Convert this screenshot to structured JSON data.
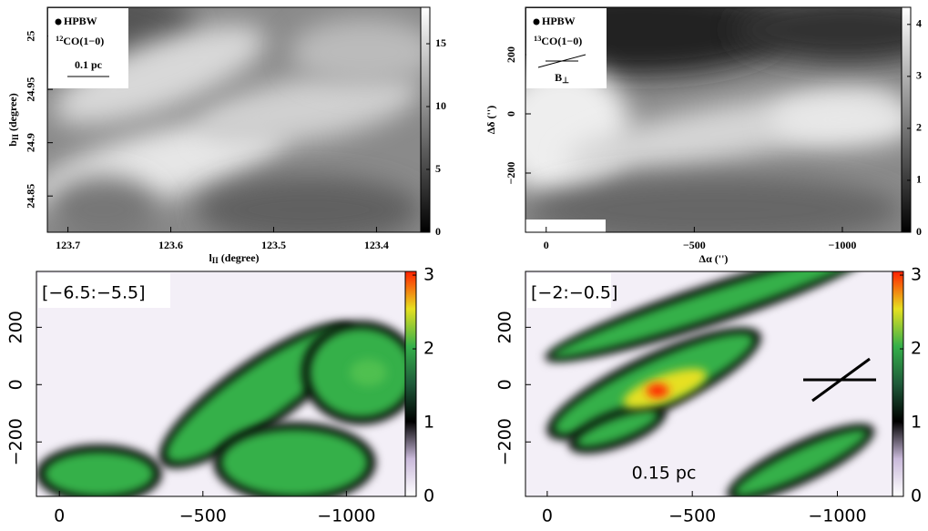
{
  "chart_data": [
    {
      "type": "image",
      "colormap": [
        "#000000",
        "#ffffff"
      ],
      "xlabel": [
        {
          "text": "l"
        },
        {
          "text": "II",
          "style": "sub"
        },
        {
          "text": " (degree)"
        }
      ],
      "ylabel": [
        {
          "text": "b"
        },
        {
          "text": "II",
          "style": "sub"
        },
        {
          "text": " (degree)"
        }
      ],
      "xlim": [
        123.72,
        123.357
      ],
      "ylim": [
        24.816,
        25.027
      ],
      "clim": [
        0,
        17.9
      ],
      "xticks": [
        123.7,
        123.6,
        123.5,
        123.4
      ],
      "yticks": [
        24.85,
        24.9,
        24.95,
        25
      ],
      "cticks": [
        0,
        5,
        10,
        15
      ],
      "legend": [
        [
          {
            "text": "HPBW"
          }
        ],
        [
          {
            "text": "12",
            "style": "sup"
          },
          {
            "text": "CO(1−0)"
          }
        ],
        [
          {
            "text": "0.1 pc"
          }
        ]
      ]
    },
    {
      "type": "image",
      "colormap": [
        "#000000",
        "#ffffff"
      ],
      "xlabel": [
        {
          "text": "Δα ('')"
        }
      ],
      "ylabel": [
        {
          "text": "Δδ ('')"
        }
      ],
      "xlim": [
        70,
        -1200
      ],
      "ylim": [
        -400,
        360
      ],
      "clim": [
        0,
        4.33
      ],
      "xticks": [
        0,
        {
          "value": -500,
          "label": "−500"
        },
        {
          "value": -1000,
          "label": "−1000"
        }
      ],
      "yticks": [
        {
          "value": -200,
          "label": "−200"
        },
        0,
        200
      ],
      "cticks": [
        0,
        1,
        2,
        3,
        4
      ],
      "legend": [
        [
          {
            "text": "HPBW"
          }
        ],
        [
          {
            "text": "13",
            "style": "sup"
          },
          {
            "text": "CO(1−0)"
          }
        ],
        [
          {
            "text": "B"
          },
          {
            "text": "⊥",
            "style": "sub"
          }
        ]
      ]
    },
    {
      "type": "image",
      "colormap": [
        "#ffffff",
        "#c9b9da",
        "#000000",
        "#1f5a3a",
        "#35b04a",
        "#e6e020",
        "#ff2000"
      ],
      "label": "[−6.5:−5.5]",
      "xlim": [
        80,
        -1205
      ],
      "ylim": [
        -390,
        395
      ],
      "clim": [
        0,
        3.05
      ],
      "xticks": [
        0,
        {
          "value": -500,
          "label": "−500"
        },
        {
          "value": -1000,
          "label": "−1000"
        }
      ],
      "yticks": [
        {
          "value": -200,
          "label": "−200"
        },
        0,
        200
      ],
      "cticks": [
        0,
        1,
        2,
        3
      ]
    },
    {
      "type": "image",
      "colormap": [
        "#ffffff",
        "#c9b9da",
        "#000000",
        "#1f5a3a",
        "#35b04a",
        "#e6e020",
        "#ff2000"
      ],
      "label": "[−2:−0.5]",
      "annotation": "0.15 pc",
      "xlim": [
        75,
        -1190
      ],
      "ylim": [
        -390,
        395
      ],
      "clim": [
        0,
        3.05
      ],
      "xticks": [
        0,
        {
          "value": -500,
          "label": "−500"
        },
        {
          "value": -1000,
          "label": "−1000"
        }
      ],
      "yticks": [
        {
          "value": -200,
          "label": "−200"
        },
        0,
        200
      ],
      "cticks": [
        0,
        1,
        2,
        3
      ]
    }
  ]
}
